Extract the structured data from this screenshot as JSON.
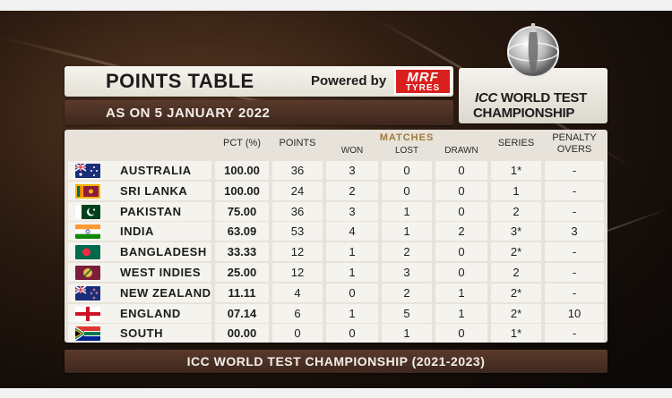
{
  "header": {
    "title": "POINTS TABLE",
    "powered_by": "Powered by",
    "sponsor_mrf": "MRF",
    "sponsor_tyres": "TYRES",
    "date": "AS ON 5 JANUARY 2022"
  },
  "brand": {
    "icc": "ICC",
    "line1_rest": "WORLD TEST",
    "line2": "CHAMPIONSHIP"
  },
  "columns": {
    "pct": "PCT (%)",
    "points": "POINTS",
    "matches": "MATCHES",
    "won": "WON",
    "lost": "LOST",
    "drawn": "DRAWN",
    "series": "SERIES",
    "penalty_line1": "PENALTY",
    "penalty_line2": "OVERS"
  },
  "rows": [
    {
      "team": "AUSTRALIA",
      "flag": "australia",
      "pct": "100.00",
      "points": "36",
      "won": "3",
      "lost": "0",
      "drawn": "0",
      "series": "1*",
      "penalty": "-"
    },
    {
      "team": "SRI LANKA",
      "flag": "sri-lanka",
      "pct": "100.00",
      "points": "24",
      "won": "2",
      "lost": "0",
      "drawn": "0",
      "series": "1",
      "penalty": "-"
    },
    {
      "team": "PAKISTAN",
      "flag": "pakistan",
      "pct": "75.00",
      "points": "36",
      "won": "3",
      "lost": "1",
      "drawn": "0",
      "series": "2",
      "penalty": "-"
    },
    {
      "team": "INDIA",
      "flag": "india",
      "pct": "63.09",
      "points": "53",
      "won": "4",
      "lost": "1",
      "drawn": "2",
      "series": "3*",
      "penalty": "3"
    },
    {
      "team": "BANGLADESH",
      "flag": "bangladesh",
      "pct": "33.33",
      "points": "12",
      "won": "1",
      "lost": "2",
      "drawn": "0",
      "series": "2*",
      "penalty": "-"
    },
    {
      "team": "WEST INDIES",
      "flag": "west-indies",
      "pct": "25.00",
      "points": "12",
      "won": "1",
      "lost": "3",
      "drawn": "0",
      "series": "2",
      "penalty": "-"
    },
    {
      "team": "NEW ZEALAND",
      "flag": "new-zealand",
      "pct": "11.11",
      "points": "4",
      "won": "0",
      "lost": "2",
      "drawn": "1",
      "series": "2*",
      "penalty": "-"
    },
    {
      "team": "ENGLAND",
      "flag": "england",
      "pct": "07.14",
      "points": "6",
      "won": "1",
      "lost": "5",
      "drawn": "1",
      "series": "2*",
      "penalty": "10"
    },
    {
      "team": "SOUTH AFRICA",
      "flag": "south-africa",
      "pct": "00.00",
      "points": "0",
      "won": "0",
      "lost": "1",
      "drawn": "0",
      "series": "1*",
      "penalty": "-"
    }
  ],
  "footer": "ICC WORLD TEST CHAMPIONSHIP (2021-2023)",
  "colors": {
    "accent_gold": "#a07a3a",
    "dark_bar": "#3e271d",
    "mrf_red": "#d9201f"
  }
}
